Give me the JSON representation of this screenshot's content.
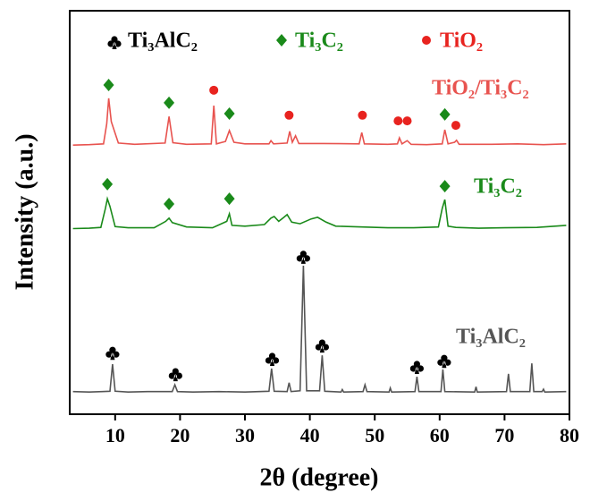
{
  "chart_data": {
    "type": "line",
    "xlabel": "2θ (degree)",
    "ylabel": "Intensity (a.u.)",
    "xlim": [
      3,
      80
    ],
    "xticks": [
      10,
      20,
      30,
      40,
      50,
      60,
      70,
      80
    ],
    "ylim": [
      0,
      100
    ],
    "series": [
      {
        "name": "Ti₃AlC₂",
        "color": "#555555",
        "x": [
          3.5,
          6,
          8,
          9.2,
          9.6,
          10,
          12,
          15,
          18.8,
          19.2,
          19.6,
          22,
          26,
          30,
          33.7,
          34.1,
          34.5,
          36.5,
          36.8,
          37.1,
          38.5,
          39,
          39.5,
          41.5,
          41.9,
          42.3,
          44.8,
          45,
          45.2,
          48.2,
          48.5,
          48.8,
          52.2,
          52.4,
          52.6,
          56.2,
          56.5,
          56.8,
          60.2,
          60.5,
          60.8,
          65.4,
          65.6,
          65.8,
          70.3,
          70.6,
          70.9,
          73.9,
          74.2,
          74.5,
          75.8,
          76,
          76.2,
          79.5
        ],
        "values": [
          5.6,
          5.5,
          5.6,
          5.7,
          12.4,
          5.7,
          5.5,
          5.6,
          5.6,
          7.3,
          5.6,
          5.5,
          5.6,
          5.5,
          5.7,
          11.3,
          5.7,
          5.6,
          7.8,
          5.6,
          5.8,
          36.8,
          5.8,
          5.8,
          14.6,
          5.7,
          5.5,
          6.1,
          5.5,
          5.6,
          7.3,
          5.6,
          5.5,
          6.5,
          5.5,
          5.6,
          9.3,
          5.6,
          5.6,
          11.1,
          5.6,
          5.5,
          6.8,
          5.5,
          5.6,
          10,
          5.6,
          5.6,
          12.6,
          5.6,
          5.6,
          6.2,
          5.5,
          5.6
        ]
      },
      {
        "name": "Ti₃C₂",
        "color": "#1a8a1a",
        "x": [
          3.5,
          6,
          7.8,
          8.5,
          8.8,
          9.2,
          10,
          12,
          16,
          17.8,
          18.3,
          18.8,
          21,
          25,
          27.2,
          27.6,
          28,
          30,
          33,
          34,
          34.5,
          35.2,
          36,
          36.5,
          37.2,
          38.5,
          40.2,
          41.2,
          42.5,
          44,
          48,
          52,
          56,
          59.8,
          60.4,
          60.8,
          61.3,
          62.5,
          66,
          70,
          75,
          79.5
        ],
        "values": [
          46,
          46.1,
          46.3,
          51,
          53.4,
          51.5,
          46.5,
          46.2,
          46.2,
          47.8,
          48.6,
          47.5,
          46.4,
          46.2,
          47.8,
          49.7,
          46.8,
          46.6,
          47,
          48.6,
          49,
          47.8,
          48.8,
          49.5,
          47.6,
          47.2,
          48.4,
          48.8,
          47.6,
          46.6,
          46.4,
          46.2,
          46.2,
          46.4,
          51,
          53.2,
          46.6,
          46.3,
          46.1,
          46.2,
          46.3,
          46.8
        ]
      },
      {
        "name": "TiO₂/Ti₃C₂",
        "color": "#e8534f",
        "x": [
          3.5,
          6,
          8.2,
          8.7,
          9,
          9.4,
          10.5,
          13,
          17.7,
          18.3,
          18.9,
          21,
          24.8,
          25.2,
          25.6,
          27,
          27.6,
          28.3,
          30,
          33.7,
          34,
          34.4,
          36.5,
          36.9,
          37.3,
          37.8,
          38.3,
          42,
          47.6,
          48,
          48.4,
          52,
          53.5,
          53.8,
          54.2,
          55,
          55.6,
          58,
          60.4,
          60.8,
          61.3,
          62.3,
          62.6,
          63,
          68,
          72,
          76,
          79.5
        ],
        "values": [
          66.7,
          66.8,
          67,
          72,
          78.3,
          72.5,
          67.2,
          66.9,
          67.2,
          73.8,
          67.3,
          66.9,
          67,
          76.5,
          67,
          67.6,
          70.3,
          67.4,
          67,
          67,
          67.8,
          67,
          67.2,
          70.1,
          67.4,
          69,
          67.1,
          67.1,
          67,
          69.8,
          67,
          66.9,
          67,
          68.5,
          67,
          67.8,
          66.9,
          66.8,
          67,
          70.5,
          67,
          67.4,
          67.9,
          66.9,
          66.9,
          67,
          66.8,
          67
        ]
      }
    ],
    "phases": [
      {
        "name": "Ti₃AlC₂",
        "color": "#000000",
        "marker_color": "#000000",
        "marker": "club",
        "x": [
          9.6,
          19.3,
          34.2,
          39,
          41.9,
          56.5,
          60.7
        ],
        "y": [
          15.7,
          10.4,
          14.2,
          39.5,
          17.5,
          12.2,
          13.7
        ]
      },
      {
        "name": "Ti₃C₂",
        "color": "#1a8a1a",
        "marker_color": "#1a8a1a",
        "marker": "diamond",
        "x": [
          8.8,
          18.3,
          27.6,
          60.8,
          9,
          18.3,
          27.6,
          60.8
        ],
        "y": [
          57,
          52.1,
          53.4,
          56.5,
          81.6,
          77.2,
          74.5,
          74.3
        ]
      },
      {
        "name": "TiO₂",
        "color": "#e8231f",
        "marker_color": "#e8231f",
        "marker": "circle",
        "x": [
          25.2,
          36.8,
          48.1,
          53.6,
          55,
          62.5
        ],
        "y": [
          80.3,
          74.1,
          74.1,
          72.7,
          72.7,
          71.6
        ]
      }
    ]
  }
}
